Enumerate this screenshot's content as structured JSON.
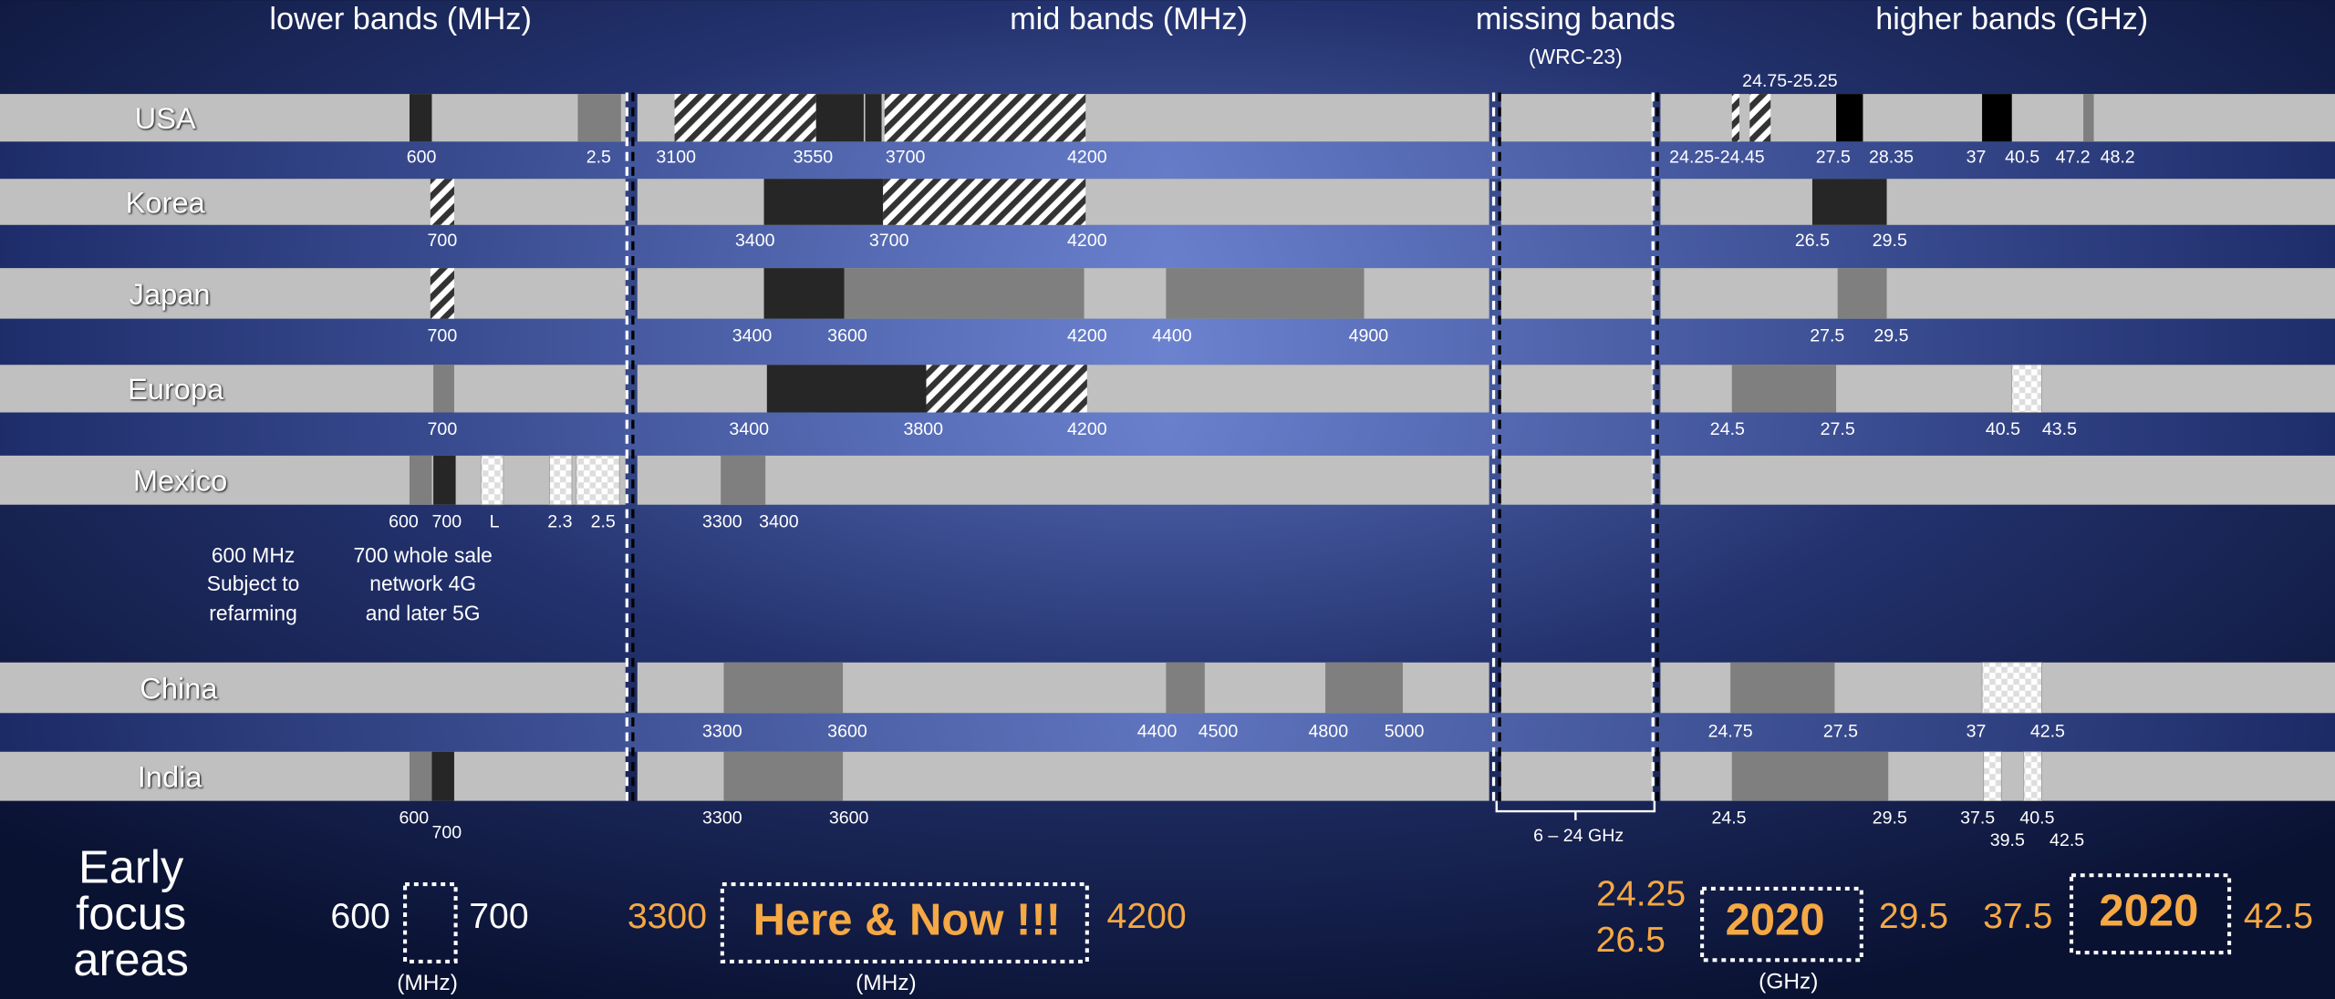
{
  "headers": {
    "lower": "lower bands (MHz)",
    "mid": "mid bands (MHz)",
    "missing": "missing bands",
    "wrc": "(WRC-23)",
    "higher": "higher bands (GHz)"
  },
  "rows": [
    {
      "name": "USA",
      "top_label": "24.75-25.25",
      "labels": [
        "600",
        "2.5",
        "3100",
        "3550",
        "3700",
        "4200",
        "24.25-24.45",
        "27.5",
        "28.35",
        "37",
        "40.5",
        "47.2",
        "48.2"
      ]
    },
    {
      "name": "Korea",
      "labels": [
        "700",
        "3400",
        "3700",
        "4200",
        "26.5",
        "29.5"
      ]
    },
    {
      "name": "Japan",
      "labels": [
        "700",
        "3400",
        "3600",
        "4200",
        "4400",
        "4900",
        "27.5",
        "29.5"
      ]
    },
    {
      "name": "Europa",
      "labels": [
        "700",
        "3400",
        "3800",
        "4200",
        "24.5",
        "27.5",
        "40.5",
        "43.5"
      ]
    },
    {
      "name": "Mexico",
      "labels": [
        "600",
        "700",
        "L",
        "2.3",
        "2.5",
        "3300",
        "3400"
      ]
    },
    {
      "name": "China",
      "labels": [
        "3300",
        "3600",
        "4400",
        "4500",
        "4800",
        "5000",
        "24.75",
        "27.5",
        "37",
        "42.5"
      ]
    },
    {
      "name": "India",
      "labels": [
        "600",
        "700",
        "3300",
        "3600",
        "24.5",
        "29.5",
        "37.5",
        "40.5",
        "39.5",
        "42.5"
      ]
    }
  ],
  "notes": {
    "left": [
      "600 MHz",
      "Subject to",
      "refarming"
    ],
    "right": [
      "700 whole sale",
      "network 4G",
      "and later 5G"
    ]
  },
  "missing_range": "6 – 24 GHz",
  "focus": {
    "title": [
      "Early",
      "focus",
      "areas"
    ],
    "items": [
      "600",
      "700",
      "(MHz)",
      "3300",
      "Here & Now !!!",
      "4200",
      "(MHz)",
      "24.25",
      "26.5",
      "2020",
      "29.5",
      "(GHz)",
      "37.5",
      "2020",
      "42.5"
    ]
  }
}
